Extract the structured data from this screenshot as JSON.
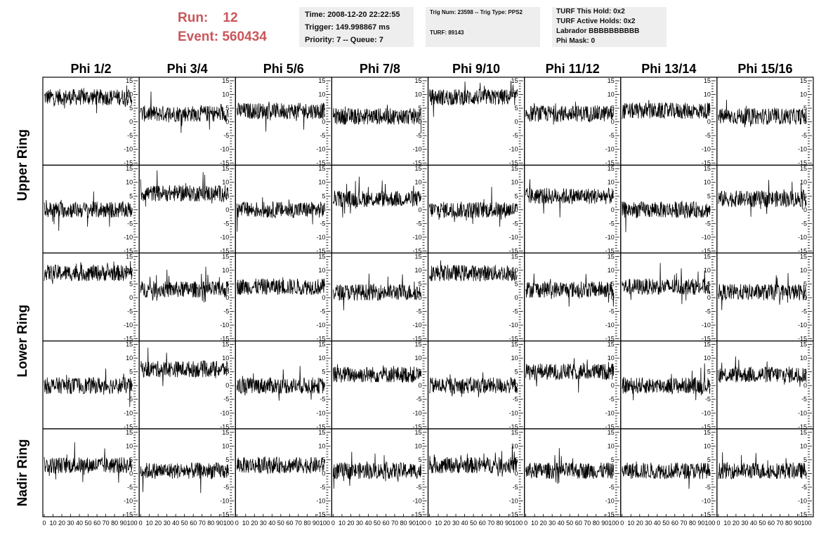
{
  "header": {
    "run_label": "Run:",
    "run_value": "12",
    "event_label": "Event:",
    "event_value": "560434"
  },
  "info_time": {
    "time": "Time: 2008-12-20 22:22:55",
    "trigger": "Trigger: 149.998867 ms",
    "priority": "Priority: 7 -- Queue: 7"
  },
  "info_trig": {
    "trig": "Trig Num: 23598 -- Trig Type: PPS2",
    "turf": "TURF: 89143"
  },
  "info_turf": {
    "this_hold": "TURF This Hold: 0x2",
    "active_holds": "TURF Active Holds: 0x2",
    "labrador": "Labrador BBBBBBBBBB",
    "phi_mask": "Phi Mask: 0"
  },
  "chart_data": {
    "type": "line",
    "columns": [
      "Phi 1/2",
      "Phi 3/4",
      "Phi 5/6",
      "Phi 7/8",
      "Phi 9/10",
      "Phi 11/12",
      "Phi 13/14",
      "Phi 15/16"
    ],
    "ring_labels": [
      "Upper Ring",
      "Lower Ring",
      "Nadir Ring"
    ],
    "xlim": [
      0,
      100
    ],
    "ylim": [
      -15,
      15
    ],
    "x_tick_labels": [
      "0",
      "10",
      "20",
      "30",
      "40",
      "50",
      "60",
      "70",
      "80",
      "90",
      "100"
    ],
    "y_tick_labels": [
      "-15",
      "-10",
      "-5",
      "0",
      "5",
      "10",
      "15"
    ],
    "baselines": [
      [
        9,
        3,
        4,
        2,
        9,
        3,
        4,
        2
      ],
      [
        0,
        6,
        0,
        4,
        0,
        5,
        0,
        4
      ],
      [
        9,
        3,
        4,
        2,
        9,
        3,
        4,
        2
      ],
      [
        0,
        6,
        0,
        4,
        0,
        5,
        0,
        4
      ],
      [
        3,
        1,
        3,
        1,
        3,
        1,
        1,
        1
      ]
    ],
    "noise_amplitude": 3
  }
}
